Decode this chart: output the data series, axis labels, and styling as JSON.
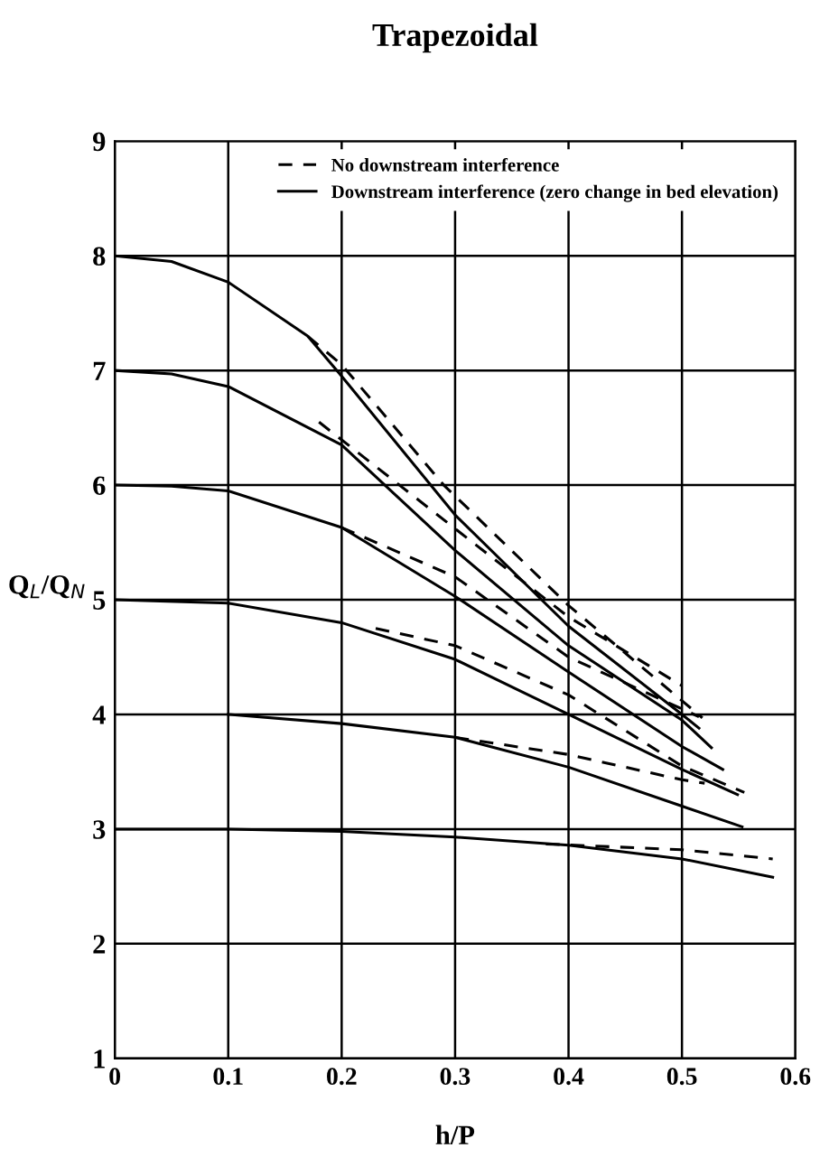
{
  "chart_data": {
    "type": "line",
    "title": "Trapezoidal",
    "xlabel": "h/P",
    "ylabel": "Q$_{L}$/Q$_{N}$",
    "xlim": [
      0,
      0.6
    ],
    "ylim": [
      1,
      9
    ],
    "xticks": [
      0,
      0.1,
      0.2,
      0.3,
      0.4,
      0.5,
      0.6
    ],
    "yticks": [
      1,
      2,
      3,
      4,
      5,
      6,
      7,
      8,
      9
    ],
    "grid": true,
    "legend": "top right",
    "marker": "none",
    "series": [
      {
        "name": "No downstream interference",
        "color": "#000000",
        "line_style": "dashed",
        "x": [
          0.17,
          0.2,
          0.29,
          0.4,
          0.518
        ],
        "values": [
          7.3,
          7.05,
          6.0,
          4.95,
          3.97
        ]
      },
      {
        "name": "Downstream interference (zero change in bed elevation)",
        "color": "#000000",
        "line_style": "solid",
        "x": [
          0,
          0.05,
          0.1,
          0.17,
          0.2,
          0.3,
          0.4,
          0.5,
          0.515
        ],
        "values": [
          8.0,
          7.95,
          7.77,
          7.3,
          6.95,
          5.74,
          4.77,
          4.0,
          3.88
        ]
      },
      {
        "color": "#000000",
        "line_style": "dashed",
        "x": [
          0.18,
          0.3,
          0.4,
          0.5
        ],
        "values": [
          6.55,
          5.62,
          4.85,
          4.25
        ]
      },
      {
        "color": "#000000",
        "line_style": "solid",
        "x": [
          0,
          0.05,
          0.1,
          0.2,
          0.3,
          0.4,
          0.5,
          0.526
        ],
        "values": [
          7.0,
          6.97,
          6.86,
          6.35,
          5.43,
          4.6,
          3.95,
          3.71
        ]
      },
      {
        "color": "#000000",
        "line_style": "dashed",
        "x": [
          0.2,
          0.3,
          0.4,
          0.515
        ],
        "values": [
          5.63,
          5.2,
          4.5,
          3.98
        ]
      },
      {
        "color": "#000000",
        "line_style": "solid",
        "x": [
          0,
          0.05,
          0.1,
          0.2,
          0.3,
          0.4,
          0.5,
          0.536
        ],
        "values": [
          6.0,
          5.99,
          5.95,
          5.63,
          5.03,
          4.37,
          3.72,
          3.52
        ]
      },
      {
        "color": "#000000",
        "line_style": "dashed",
        "x": [
          0.23,
          0.3,
          0.4,
          0.5,
          0.555
        ],
        "values": [
          4.75,
          4.6,
          4.17,
          3.55,
          3.32
        ]
      },
      {
        "color": "#000000",
        "line_style": "solid",
        "x": [
          0,
          0.1,
          0.2,
          0.3,
          0.4,
          0.5,
          0.549
        ],
        "values": [
          5.0,
          4.97,
          4.8,
          4.48,
          4.0,
          3.52,
          3.3
        ]
      },
      {
        "color": "#000000",
        "line_style": "dashed",
        "x": [
          0.3,
          0.4,
          0.5,
          0.52
        ],
        "values": [
          3.8,
          3.65,
          3.43,
          3.4
        ]
      },
      {
        "color": "#000000",
        "line_style": "solid",
        "x": [
          0.1,
          0.2,
          0.3,
          0.4,
          0.5,
          0.553
        ],
        "values": [
          4.0,
          3.92,
          3.8,
          3.54,
          3.2,
          3.02
        ]
      },
      {
        "color": "#000000",
        "line_style": "dashed",
        "x": [
          0.38,
          0.5,
          0.58
        ],
        "values": [
          2.87,
          2.82,
          2.74
        ]
      },
      {
        "color": "#000000",
        "line_style": "solid",
        "x": [
          0,
          0.1,
          0.2,
          0.3,
          0.4,
          0.5,
          0.58
        ],
        "values": [
          3.0,
          3.0,
          2.98,
          2.93,
          2.86,
          2.74,
          2.58
        ]
      }
    ]
  }
}
